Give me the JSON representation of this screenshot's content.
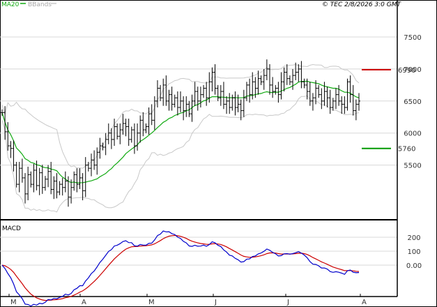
{
  "legend": {
    "ma_label": "MA20",
    "bb_label": "BBands"
  },
  "header": {
    "text": "© TEC 2/8/2026 3:0 GMT"
  },
  "colors": {
    "price": "#000000",
    "ma": "#11aa11",
    "bbands": "#c8c8c8",
    "grid": "#d8d8d8",
    "resistance": "#cc0000",
    "support": "#009900",
    "macd": "#0000cc",
    "signal": "#cc0000",
    "axis": "#000000"
  },
  "indicator": {
    "label": "MACD"
  },
  "chart_data": {
    "type": "line",
    "price_axis": {
      "ticks": [
        "5500",
        "6000",
        "6500",
        "7000",
        "7500"
      ],
      "ylim": [
        4700,
        7860
      ],
      "grid": true
    },
    "macd_axis": {
      "ticks": [
        "0.00",
        "100",
        "200"
      ],
      "ylim": [
        -190,
        290
      ]
    },
    "x_ticks": [
      "M",
      "A",
      "M",
      "J",
      "J",
      "A"
    ],
    "levels": [
      {
        "kind": "resistance",
        "value": 6990,
        "label": "6990"
      },
      {
        "kind": "support",
        "value": 5760,
        "label": "5760"
      }
    ],
    "close": [
      6320,
      6020,
      5800,
      5760,
      5500,
      5200,
      5450,
      5300,
      5050,
      5350,
      5200,
      5420,
      5180,
      5380,
      5150,
      5280,
      5400,
      5120,
      5250,
      5080,
      5200,
      5150,
      5250,
      5000,
      5150,
      5350,
      5200,
      5300,
      5100,
      5500,
      5450,
      5580,
      5500,
      5700,
      5800,
      5780,
      5900,
      6000,
      5900,
      6100,
      5950,
      6050,
      6150,
      6100,
      5900,
      6050,
      5800,
      6000,
      6200,
      6050,
      6100,
      6300,
      6200,
      6500,
      6700,
      6550,
      6750,
      6500,
      6600,
      6450,
      6550,
      6400,
      6500,
      6350,
      6450,
      6300,
      6500,
      6650,
      6500,
      6600,
      6700,
      6550,
      6800,
      6950,
      6700,
      6550,
      6650,
      6450,
      6500,
      6400,
      6550,
      6400,
      6450,
      6350,
      6550,
      6750,
      6600,
      6800,
      6700,
      6850,
      6800,
      6900,
      7000,
      6750,
      6650,
      6700,
      6600,
      6800,
      6950,
      6850,
      6800,
      6900,
      6950,
      7000,
      6800,
      6750,
      6650,
      6500,
      6550,
      6700,
      6600,
      6500,
      6650,
      6550,
      6400,
      6500,
      6600,
      6500,
      6450,
      6400,
      6800,
      6600,
      6350,
      6450,
      6500
    ]
  }
}
